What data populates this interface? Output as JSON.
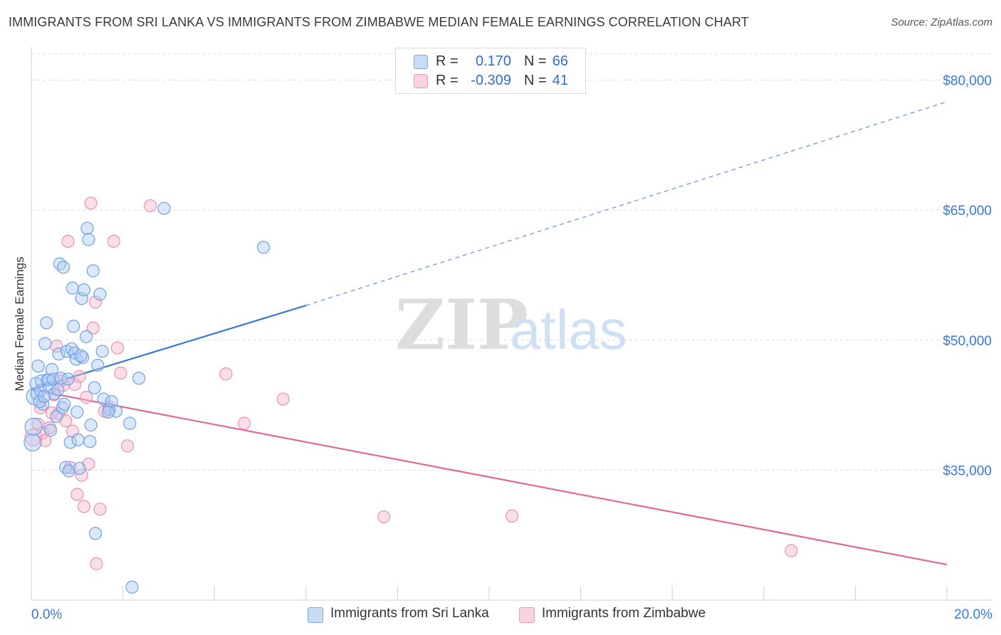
{
  "title": "IMMIGRANTS FROM SRI LANKA VS IMMIGRANTS FROM ZIMBABWE MEDIAN FEMALE EARNINGS CORRELATION CHART",
  "source": "Source: ZipAtlas.com",
  "watermark": {
    "zip": "ZIP",
    "atlas": "atlas"
  },
  "legend": {
    "rows": [
      {
        "r_label": "R =",
        "r_value": "0.170",
        "n_label": "N =",
        "n_value": "66",
        "color": "#aecbf2"
      },
      {
        "r_label": "R =",
        "r_value": "-0.309",
        "n_label": "N =",
        "n_value": "41",
        "color": "#f6b7cc"
      }
    ]
  },
  "bottom_legend": {
    "sri_lanka": "Immigrants from Sri Lanka",
    "zimbabwe": "Immigrants from Zimbabwe"
  },
  "colors": {
    "blue_fill": "#aecbf2",
    "blue_stroke": "#6fa1e6",
    "blue_line": "#3b78d4",
    "pink_fill": "#f6b7cc",
    "pink_stroke": "#ef8fb0",
    "pink_line": "#e0689a",
    "tick_text": "#3b78d4"
  },
  "chart_data": {
    "type": "scatter",
    "title": "IMMIGRANTS FROM SRI LANKA VS IMMIGRANTS FROM ZIMBABWE MEDIAN FEMALE EARNINGS CORRELATION CHART",
    "xlabel": "",
    "ylabel": "Median Female Earnings",
    "xlim": [
      0,
      0.2
    ],
    "ylim": [
      20000,
      83000
    ],
    "x_tick_labels": [
      "0.0%",
      "20.0%"
    ],
    "y_ticks": [
      35000,
      50000,
      65000,
      80000
    ],
    "y_tick_labels": [
      "$35,000",
      "$50,000",
      "$65,000",
      "$80,000"
    ],
    "grid": true,
    "legend_position": "top-center",
    "series": [
      {
        "name": "Immigrants from Sri Lanka",
        "color": "#6fa1e6",
        "points": [
          [
            0.0003,
            38200
          ],
          [
            0.0005,
            40000
          ],
          [
            0.0008,
            43500
          ],
          [
            0.001,
            45000
          ],
          [
            0.0012,
            43800
          ],
          [
            0.0015,
            47000
          ],
          [
            0.002,
            44200
          ],
          [
            0.0022,
            45300
          ],
          [
            0.0025,
            42600
          ],
          [
            0.003,
            49600
          ],
          [
            0.0033,
            52000
          ],
          [
            0.0035,
            45400
          ],
          [
            0.0038,
            45400
          ],
          [
            0.004,
            44500
          ],
          [
            0.0042,
            39600
          ],
          [
            0.0045,
            46600
          ],
          [
            0.0048,
            45500
          ],
          [
            0.005,
            43800
          ],
          [
            0.0055,
            41200
          ],
          [
            0.006,
            48400
          ],
          [
            0.0062,
            58800
          ],
          [
            0.0065,
            45600
          ],
          [
            0.0068,
            42200
          ],
          [
            0.007,
            58400
          ],
          [
            0.0072,
            42600
          ],
          [
            0.0075,
            35300
          ],
          [
            0.0078,
            48700
          ],
          [
            0.008,
            45500
          ],
          [
            0.0082,
            34900
          ],
          [
            0.0085,
            38200
          ],
          [
            0.0088,
            49000
          ],
          [
            0.009,
            56000
          ],
          [
            0.0092,
            51600
          ],
          [
            0.0095,
            48500
          ],
          [
            0.0098,
            47800
          ],
          [
            0.01,
            41700
          ],
          [
            0.0102,
            38500
          ],
          [
            0.0105,
            35200
          ],
          [
            0.011,
            54800
          ],
          [
            0.0112,
            48000
          ],
          [
            0.0115,
            55800
          ],
          [
            0.012,
            50400
          ],
          [
            0.0122,
            62900
          ],
          [
            0.0125,
            61600
          ],
          [
            0.0128,
            38300
          ],
          [
            0.013,
            40200
          ],
          [
            0.0135,
            58000
          ],
          [
            0.0138,
            44500
          ],
          [
            0.014,
            27700
          ],
          [
            0.0145,
            47100
          ],
          [
            0.015,
            55300
          ],
          [
            0.0155,
            48700
          ],
          [
            0.0158,
            43200
          ],
          [
            0.017,
            42000
          ],
          [
            0.0175,
            42900
          ],
          [
            0.0185,
            41800
          ],
          [
            0.0215,
            40400
          ],
          [
            0.022,
            21500
          ],
          [
            0.0235,
            45600
          ],
          [
            0.029,
            65200
          ],
          [
            0.0507,
            60700
          ],
          [
            0.0018,
            42900
          ],
          [
            0.0028,
            43500
          ],
          [
            0.0058,
            44300
          ],
          [
            0.0108,
            48200
          ],
          [
            0.0168,
            41700
          ]
        ]
      },
      {
        "name": "Immigrants from Zimbabwe",
        "color": "#ef8fb0",
        "points": [
          [
            0.0005,
            38800
          ],
          [
            0.0015,
            40300
          ],
          [
            0.002,
            42200
          ],
          [
            0.0025,
            39300
          ],
          [
            0.003,
            38400
          ],
          [
            0.004,
            39900
          ],
          [
            0.0045,
            41600
          ],
          [
            0.005,
            43700
          ],
          [
            0.0055,
            49300
          ],
          [
            0.006,
            41500
          ],
          [
            0.0065,
            45300
          ],
          [
            0.007,
            44800
          ],
          [
            0.0075,
            40700
          ],
          [
            0.008,
            61400
          ],
          [
            0.0085,
            35300
          ],
          [
            0.009,
            39500
          ],
          [
            0.0095,
            44900
          ],
          [
            0.01,
            32200
          ],
          [
            0.0105,
            45800
          ],
          [
            0.011,
            34400
          ],
          [
            0.0115,
            30800
          ],
          [
            0.012,
            43400
          ],
          [
            0.0125,
            35700
          ],
          [
            0.013,
            65800
          ],
          [
            0.0135,
            51400
          ],
          [
            0.014,
            54400
          ],
          [
            0.0142,
            24200
          ],
          [
            0.015,
            30500
          ],
          [
            0.016,
            41800
          ],
          [
            0.017,
            42300
          ],
          [
            0.018,
            61400
          ],
          [
            0.0188,
            49100
          ],
          [
            0.0195,
            46200
          ],
          [
            0.021,
            37800
          ],
          [
            0.026,
            65500
          ],
          [
            0.0425,
            46100
          ],
          [
            0.0465,
            40400
          ],
          [
            0.055,
            43200
          ],
          [
            0.077,
            29600
          ],
          [
            0.105,
            29700
          ],
          [
            0.166,
            25700
          ]
        ]
      }
    ],
    "trend_lines": [
      {
        "name": "Immigrants from Sri Lanka",
        "x0": 0.0,
        "y0": 44300,
        "x1": 0.06,
        "y1": 54000,
        "dashed_to_x": 0.2,
        "dashed_to_y": 77500
      },
      {
        "name": "Immigrants from Zimbabwe",
        "x0": 0.0,
        "y0": 44300,
        "x1": 0.2,
        "y1": 24100
      }
    ]
  }
}
